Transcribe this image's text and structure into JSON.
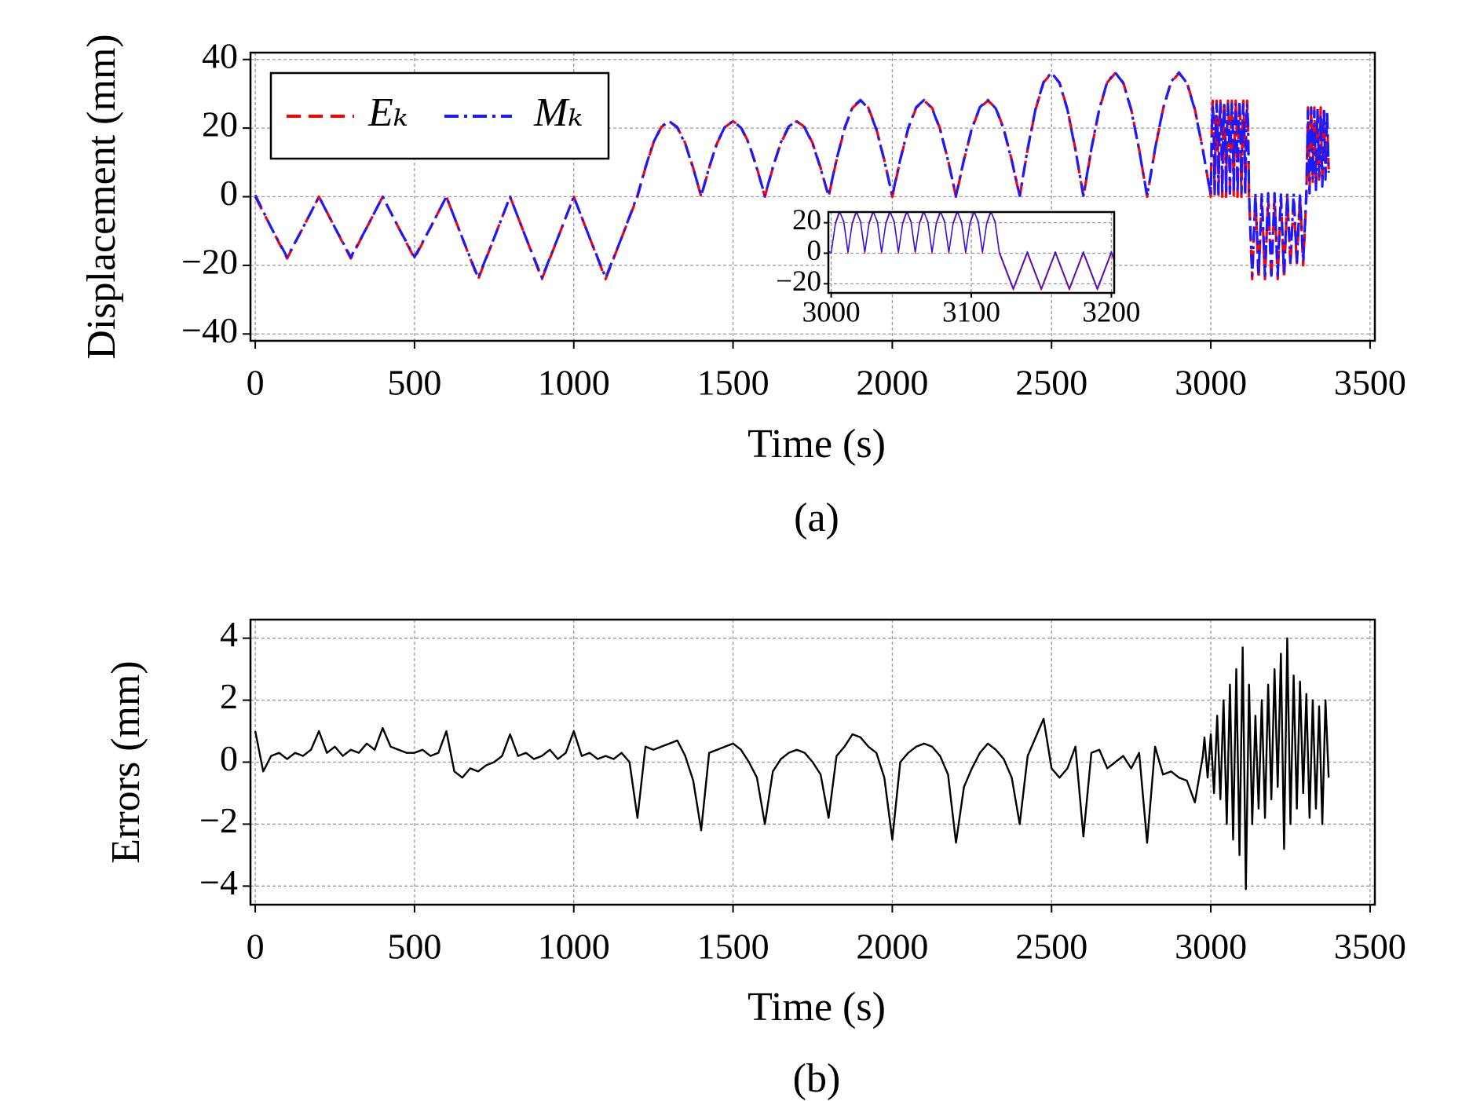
{
  "chart_data": [
    {
      "type": "line",
      "caption": "(a)",
      "xlabel": "Time (s)",
      "ylabel": "Displacement (mm)",
      "xlim": [
        -15,
        3515
      ],
      "ylim": [
        -42,
        42
      ],
      "xticks": [
        0,
        500,
        1000,
        1500,
        2000,
        2500,
        3000,
        3500
      ],
      "yticks": [
        {
          "value": -40,
          "label": "−40"
        },
        {
          "value": -20,
          "label": "−20"
        },
        0,
        20,
        40
      ],
      "grid": true,
      "legend": "upper left",
      "x": [
        0,
        50,
        100,
        150,
        200,
        250,
        300,
        350,
        400,
        450,
        500,
        550,
        600,
        650,
        700,
        750,
        800,
        850,
        900,
        950,
        1000,
        1050,
        1100,
        1150,
        1200,
        1225,
        1250,
        1275,
        1300,
        1325,
        1350,
        1375,
        1400,
        1425,
        1450,
        1475,
        1500,
        1525,
        1550,
        1575,
        1600,
        1625,
        1650,
        1675,
        1700,
        1725,
        1750,
        1775,
        1800,
        1825,
        1850,
        1875,
        1900,
        1925,
        1950,
        1975,
        2000,
        2025,
        2050,
        2075,
        2100,
        2125,
        2150,
        2175,
        2200,
        2225,
        2250,
        2275,
        2300,
        2325,
        2350,
        2375,
        2400,
        2425,
        2450,
        2475,
        2500,
        2525,
        2550,
        2575,
        2600,
        2625,
        2650,
        2675,
        2700,
        2725,
        2750,
        2775,
        2800,
        2825,
        2850,
        2875,
        2900,
        2925,
        2950,
        2975,
        3000,
        3003,
        3006,
        3009,
        3012,
        3015,
        3018,
        3021,
        3024,
        3027,
        3030,
        3033,
        3036,
        3039,
        3042,
        3045,
        3048,
        3051,
        3054,
        3057,
        3060,
        3063,
        3066,
        3069,
        3072,
        3075,
        3078,
        3081,
        3084,
        3087,
        3090,
        3093,
        3096,
        3099,
        3102,
        3105,
        3108,
        3111,
        3114,
        3117,
        3120,
        3130,
        3140,
        3150,
        3160,
        3170,
        3180,
        3190,
        3200,
        3210,
        3220,
        3230,
        3240,
        3250,
        3260,
        3270,
        3280,
        3290,
        3300,
        3305,
        3310,
        3315,
        3320,
        3325,
        3330,
        3335,
        3340,
        3345,
        3350,
        3355,
        3360,
        3365,
        3370
      ],
      "series": [
        {
          "name": "Eₖ",
          "color": "#ff0000",
          "linestyle": "dashed",
          "values": [
            0,
            -9,
            -18,
            -9,
            0,
            -9,
            -18,
            -9,
            0,
            -9,
            -18,
            -9,
            0,
            -12,
            -24,
            -12,
            0,
            -12,
            -24,
            -12,
            0,
            -12,
            -24,
            -12,
            0,
            8.4,
            15.6,
            20.3,
            22,
            20.3,
            15.6,
            8.4,
            0,
            8.4,
            15.6,
            20.3,
            22,
            20.3,
            15.6,
            8.4,
            0,
            8.4,
            15.6,
            20.3,
            22,
            20.3,
            15.6,
            8.4,
            0,
            10.7,
            19.8,
            25.9,
            28,
            25.9,
            19.8,
            10.7,
            0,
            10.7,
            19.8,
            25.9,
            28,
            25.9,
            19.8,
            10.7,
            0,
            10.7,
            19.8,
            25.9,
            28,
            25.9,
            19.8,
            10.7,
            0,
            13.8,
            25.5,
            33.3,
            36,
            33.3,
            25.5,
            13.8,
            0,
            13.8,
            25.5,
            33.3,
            36,
            33.3,
            25.5,
            13.8,
            0,
            13.8,
            25.5,
            33.3,
            36,
            33.3,
            25.5,
            13.8,
            0,
            20,
            28,
            20,
            0,
            20,
            28,
            20,
            0,
            20,
            28,
            20,
            0,
            20,
            28,
            20,
            0,
            20,
            28,
            20,
            0,
            20,
            28,
            20,
            0,
            20,
            28,
            20,
            0,
            20,
            28,
            20,
            0,
            20,
            28,
            20,
            0,
            20,
            28,
            20,
            0,
            -24,
            0,
            -24,
            0,
            -24,
            0,
            -24,
            0,
            -24,
            0,
            -24,
            0,
            -20,
            0,
            -20,
            0,
            -20,
            0,
            26,
            2,
            25,
            4,
            26,
            3,
            24,
            5,
            26,
            4,
            25,
            6,
            24,
            8
          ]
        },
        {
          "name": "Mₖ",
          "color": "#1a1aff",
          "linestyle": "dashdot",
          "values": [
            0.5,
            -9,
            -17.6,
            -9,
            0,
            -9,
            -17.6,
            -9,
            0,
            -9,
            -17.6,
            -9,
            0,
            -12,
            -23.6,
            -12,
            0,
            -12,
            -23.6,
            -12,
            0,
            -12,
            -23.6,
            -12,
            0.4,
            8.6,
            15.8,
            20.5,
            22,
            20.1,
            15.4,
            8.2,
            0.3,
            8.6,
            15.8,
            20.5,
            22,
            20.1,
            15.4,
            8.2,
            0.3,
            8.6,
            15.8,
            20.5,
            22,
            20.1,
            15.4,
            8.2,
            0.3,
            10.9,
            20,
            26.1,
            28.2,
            25.7,
            19.6,
            10.5,
            0.3,
            10.9,
            20,
            26.1,
            28.2,
            25.7,
            19.6,
            10.5,
            0.3,
            10.9,
            20,
            26.1,
            28.2,
            25.7,
            19.6,
            10.5,
            0.3,
            14,
            25.7,
            33.5,
            36.2,
            33.1,
            25.3,
            13.6,
            0.3,
            14,
            25.7,
            33.5,
            36.2,
            33.1,
            25.3,
            13.6,
            0.3,
            14,
            25.7,
            33.5,
            36.2,
            33.1,
            25.3,
            13.6,
            0.3,
            19,
            27,
            21,
            1,
            19,
            27,
            21,
            1,
            19,
            27,
            21,
            1,
            19,
            27,
            21,
            1,
            19,
            27,
            21,
            1,
            19,
            27,
            21,
            1,
            19,
            27,
            21,
            1,
            19,
            27,
            21,
            1,
            19,
            27,
            21,
            1,
            19,
            27,
            21,
            1,
            -23,
            1,
            -23,
            1,
            -23,
            1,
            -23,
            1,
            -23,
            1,
            -23,
            1,
            -19,
            1,
            -19,
            1,
            -19,
            1,
            25,
            1,
            26,
            5,
            25,
            2,
            26,
            6,
            24,
            3,
            26,
            5,
            25,
            7
          ]
        }
      ],
      "inset": {
        "xlim": [
          2998,
          3202
        ],
        "ylim": [
          -26,
          27
        ],
        "xticks": [
          3000,
          3100,
          3200
        ],
        "yticks": [
          {
            "value": -20,
            "label": "−20"
          },
          0,
          20
        ],
        "grid": true
      }
    },
    {
      "type": "line",
      "caption": "(b)",
      "xlabel": "Time (s)",
      "ylabel": "Errors (mm)",
      "xlim": [
        -15,
        3515
      ],
      "ylim": [
        -4.6,
        4.6
      ],
      "xticks": [
        0,
        500,
        1000,
        1500,
        2000,
        2500,
        3000,
        3500
      ],
      "yticks": [
        {
          "value": -4,
          "label": "−4"
        },
        {
          "value": -2,
          "label": "−2"
        },
        0,
        2,
        4
      ],
      "grid": true,
      "color": "#000000",
      "x": [
        0,
        25,
        50,
        75,
        100,
        125,
        150,
        175,
        200,
        225,
        250,
        275,
        300,
        325,
        350,
        375,
        400,
        425,
        450,
        475,
        500,
        525,
        550,
        575,
        600,
        625,
        650,
        675,
        700,
        725,
        750,
        775,
        800,
        825,
        850,
        875,
        900,
        925,
        950,
        975,
        1000,
        1025,
        1050,
        1075,
        1100,
        1125,
        1150,
        1175,
        1200,
        1225,
        1250,
        1275,
        1300,
        1325,
        1350,
        1375,
        1400,
        1425,
        1450,
        1475,
        1500,
        1525,
        1550,
        1575,
        1600,
        1625,
        1650,
        1675,
        1700,
        1725,
        1750,
        1775,
        1800,
        1825,
        1850,
        1875,
        1900,
        1925,
        1950,
        1975,
        2000,
        2025,
        2050,
        2075,
        2100,
        2125,
        2150,
        2175,
        2200,
        2225,
        2250,
        2275,
        2300,
        2325,
        2350,
        2375,
        2400,
        2425,
        2450,
        2475,
        2500,
        2525,
        2550,
        2575,
        2600,
        2625,
        2650,
        2675,
        2700,
        2725,
        2750,
        2775,
        2800,
        2825,
        2850,
        2875,
        2900,
        2925,
        2950,
        2975,
        2980,
        2990,
        3000,
        3010,
        3020,
        3030,
        3040,
        3050,
        3060,
        3070,
        3080,
        3090,
        3100,
        3110,
        3120,
        3130,
        3140,
        3150,
        3160,
        3170,
        3180,
        3190,
        3200,
        3210,
        3220,
        3230,
        3240,
        3250,
        3260,
        3270,
        3280,
        3290,
        3300,
        3310,
        3320,
        3330,
        3340,
        3350,
        3360,
        3370
      ],
      "values": [
        1.0,
        -0.3,
        0.2,
        0.3,
        0.1,
        0.3,
        0.2,
        0.4,
        1.0,
        0.3,
        0.5,
        0.2,
        0.4,
        0.3,
        0.6,
        0.4,
        1.1,
        0.5,
        0.4,
        0.3,
        0.3,
        0.4,
        0.2,
        0.3,
        1.0,
        -0.3,
        -0.5,
        -0.2,
        -0.3,
        -0.1,
        0.0,
        0.2,
        0.9,
        0.2,
        0.3,
        0.1,
        0.2,
        0.4,
        0.1,
        0.3,
        1.0,
        0.2,
        0.3,
        0.1,
        0.2,
        0.1,
        0.3,
        0.0,
        -1.8,
        0.5,
        0.4,
        0.5,
        0.6,
        0.7,
        0.2,
        -0.6,
        -2.2,
        0.3,
        0.4,
        0.5,
        0.6,
        0.4,
        0.0,
        -0.5,
        -2.0,
        -0.3,
        0.1,
        0.3,
        0.4,
        0.3,
        0.0,
        -0.4,
        -1.8,
        0.2,
        0.5,
        0.9,
        0.8,
        0.5,
        0.3,
        -0.5,
        -2.5,
        0.0,
        0.3,
        0.5,
        0.6,
        0.5,
        0.2,
        -0.4,
        -2.6,
        -0.8,
        -0.2,
        0.3,
        0.6,
        0.4,
        0.1,
        -0.5,
        -2.0,
        0.2,
        0.8,
        1.4,
        -0.2,
        -0.5,
        -0.2,
        0.5,
        -2.4,
        0.3,
        0.4,
        -0.2,
        0.0,
        0.2,
        -0.2,
        0.3,
        -2.6,
        0.5,
        -0.4,
        -0.3,
        -0.5,
        -0.6,
        -1.3,
        0.2,
        0.8,
        -0.5,
        0.9,
        -1.0,
        1.5,
        -1.2,
        2.0,
        -2.0,
        2.5,
        -2.5,
        3.0,
        -3.0,
        3.7,
        -4.1,
        2.5,
        -2.0,
        1.5,
        -1.5,
        2.0,
        -1.8,
        2.5,
        -1.2,
        3.0,
        -0.8,
        3.5,
        -2.8,
        4.0,
        -2.0,
        2.8,
        -1.5,
        2.6,
        -1.0,
        2.2,
        -1.8,
        2.0,
        -1.5,
        1.8,
        -2.0,
        2.0,
        -0.5
      ]
    }
  ]
}
